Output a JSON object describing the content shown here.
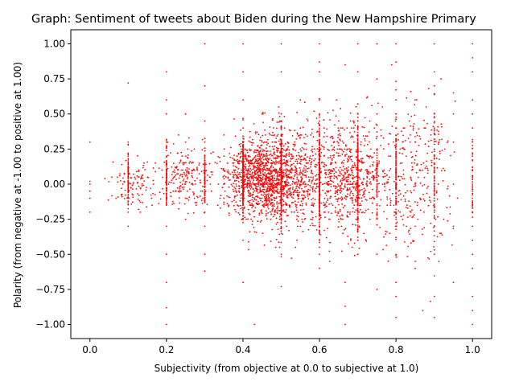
{
  "chart_data": {
    "type": "scatter",
    "title": "Graph: Sentiment of tweets about Biden during the New Hampshire Primary",
    "xlabel": "Subjectivity (from objective at 0.0 to subjective at 1.0)",
    "ylabel": "Polarity (from negative at -1.00 to positive at 1.00)",
    "xlim": [
      -0.05,
      1.05
    ],
    "ylim": [
      -1.1,
      1.1
    ],
    "xticks": [
      0.0,
      0.2,
      0.4,
      0.6,
      0.8,
      1.0
    ],
    "xtick_labels": [
      "0.0",
      "0.2",
      "0.4",
      "0.6",
      "0.8",
      "1.0"
    ],
    "yticks": [
      -1.0,
      -0.75,
      -0.5,
      -0.25,
      0.0,
      0.25,
      0.5,
      0.75,
      1.0
    ],
    "ytick_labels": [
      "−1.00",
      "−0.75",
      "−0.50",
      "−0.25",
      "0.00",
      "0.25",
      "0.50",
      "0.75",
      "1.00"
    ],
    "grid": false,
    "marker_color": "#ff0000",
    "series": [
      {
        "points": [
          [
            0.0,
            0.0
          ],
          [
            0.0,
            0.3
          ],
          [
            0.0,
            -0.05
          ],
          [
            0.0,
            -0.1
          ],
          [
            0.0,
            -0.2
          ],
          [
            0.0,
            0.02
          ],
          [
            0.1,
            0.0
          ],
          [
            0.1,
            0.1
          ],
          [
            0.1,
            -0.1
          ],
          [
            0.1,
            0.2
          ],
          [
            0.1,
            0.3
          ],
          [
            0.1,
            -0.2
          ],
          [
            0.1,
            -0.3
          ],
          [
            0.1,
            0.72
          ],
          [
            0.1,
            0.05
          ],
          [
            0.1,
            -0.05
          ],
          [
            0.2,
            0.0
          ],
          [
            0.2,
            0.1
          ],
          [
            0.2,
            -0.1
          ],
          [
            0.2,
            0.2
          ],
          [
            0.2,
            0.3
          ],
          [
            0.2,
            -0.3
          ],
          [
            0.2,
            0.5
          ],
          [
            0.2,
            0.8
          ],
          [
            0.2,
            -0.7
          ],
          [
            0.2,
            -0.88
          ],
          [
            0.2,
            -1.0
          ],
          [
            0.2,
            0.6
          ],
          [
            0.2,
            -0.5
          ],
          [
            0.25,
            0.0
          ],
          [
            0.25,
            0.1
          ],
          [
            0.25,
            0.2
          ],
          [
            0.25,
            -0.1
          ],
          [
            0.25,
            0.3
          ],
          [
            0.25,
            0.5
          ],
          [
            0.25,
            -0.25
          ],
          [
            0.3,
            1.0
          ],
          [
            0.3,
            0.0
          ],
          [
            0.3,
            0.15
          ],
          [
            0.3,
            -0.5
          ],
          [
            0.3,
            0.7
          ],
          [
            0.3,
            -0.3
          ],
          [
            0.3,
            0.3
          ],
          [
            0.3,
            0.45
          ],
          [
            0.3,
            -0.62
          ],
          [
            0.35,
            0.1
          ],
          [
            0.35,
            0.2
          ],
          [
            0.35,
            -0.1
          ],
          [
            0.35,
            0.0
          ],
          [
            0.35,
            0.35
          ],
          [
            0.4,
            0.0
          ],
          [
            0.4,
            0.1
          ],
          [
            0.4,
            0.2
          ],
          [
            0.4,
            -0.1
          ],
          [
            0.4,
            0.4
          ],
          [
            0.4,
            0.6
          ],
          [
            0.4,
            1.0
          ],
          [
            0.4,
            -0.4
          ],
          [
            0.4,
            -0.7
          ],
          [
            0.4,
            0.8
          ],
          [
            0.4,
            -0.2
          ],
          [
            0.4,
            0.3
          ],
          [
            0.45,
            0.15
          ],
          [
            0.45,
            0.25
          ],
          [
            0.45,
            -0.05
          ],
          [
            0.43,
            -1.0
          ],
          [
            0.45,
            0.5
          ],
          [
            0.5,
            0.0
          ],
          [
            0.5,
            0.1
          ],
          [
            0.5,
            0.2
          ],
          [
            0.5,
            0.3
          ],
          [
            0.5,
            -0.1
          ],
          [
            0.5,
            -0.2
          ],
          [
            0.5,
            0.5
          ],
          [
            0.5,
            1.0
          ],
          [
            0.5,
            -0.5
          ],
          [
            0.5,
            0.8
          ],
          [
            0.5,
            -0.73
          ],
          [
            0.5,
            -0.35
          ],
          [
            0.5,
            0.4
          ],
          [
            0.55,
            0.25
          ],
          [
            0.55,
            0.1
          ],
          [
            0.55,
            -0.15
          ],
          [
            0.55,
            0.4
          ],
          [
            0.55,
            -0.3
          ],
          [
            0.55,
            0.6
          ],
          [
            0.6,
            0.0
          ],
          [
            0.6,
            0.1
          ],
          [
            0.6,
            0.2
          ],
          [
            0.6,
            -0.1
          ],
          [
            0.6,
            -0.2
          ],
          [
            0.6,
            0.3
          ],
          [
            0.6,
            0.5
          ],
          [
            0.6,
            1.0
          ],
          [
            0.6,
            -0.4
          ],
          [
            0.6,
            -0.6
          ],
          [
            0.6,
            0.8
          ],
          [
            0.6,
            0.87
          ],
          [
            0.6,
            -0.5
          ],
          [
            0.65,
            0.1
          ],
          [
            0.65,
            -0.25
          ],
          [
            0.65,
            0.35
          ],
          [
            0.65,
            -0.1
          ],
          [
            0.667,
            -0.87
          ],
          [
            0.667,
            -0.7
          ],
          [
            0.667,
            0.0
          ],
          [
            0.667,
            0.2
          ],
          [
            0.667,
            -1.0
          ],
          [
            0.667,
            0.85
          ],
          [
            0.7,
            0.0
          ],
          [
            0.7,
            0.1
          ],
          [
            0.7,
            0.2
          ],
          [
            0.7,
            -0.2
          ],
          [
            0.7,
            0.5
          ],
          [
            0.7,
            1.0
          ],
          [
            0.7,
            -0.5
          ],
          [
            0.7,
            0.8
          ],
          [
            0.7,
            -0.4
          ],
          [
            0.7,
            0.35
          ],
          [
            0.75,
            0.0
          ],
          [
            0.75,
            0.1
          ],
          [
            0.75,
            0.25
          ],
          [
            0.75,
            -0.25
          ],
          [
            0.75,
            0.5
          ],
          [
            0.75,
            1.0
          ],
          [
            0.75,
            -0.5
          ],
          [
            0.75,
            0.75
          ],
          [
            0.75,
            -0.75
          ],
          [
            0.8,
            0.0
          ],
          [
            0.8,
            0.2
          ],
          [
            0.8,
            -0.2
          ],
          [
            0.8,
            0.5
          ],
          [
            0.8,
            -0.5
          ],
          [
            0.8,
            1.0
          ],
          [
            0.8,
            -0.7
          ],
          [
            0.8,
            -0.8
          ],
          [
            0.8,
            0.6
          ],
          [
            0.8,
            -0.95
          ],
          [
            0.8,
            0.4
          ],
          [
            0.85,
            0.0
          ],
          [
            0.85,
            0.3
          ],
          [
            0.85,
            -0.3
          ],
          [
            0.85,
            0.6
          ],
          [
            0.85,
            -0.6
          ],
          [
            0.87,
            -0.9
          ],
          [
            0.9,
            0.0
          ],
          [
            0.9,
            0.2
          ],
          [
            0.9,
            -0.2
          ],
          [
            0.9,
            0.5
          ],
          [
            0.9,
            -0.5
          ],
          [
            0.9,
            1.0
          ],
          [
            0.9,
            0.8
          ],
          [
            0.9,
            -0.8
          ],
          [
            0.9,
            -0.95
          ],
          [
            0.9,
            0.7
          ],
          [
            0.95,
            0.0
          ],
          [
            0.95,
            0.5
          ],
          [
            0.95,
            -0.3
          ],
          [
            0.95,
            0.3
          ],
          [
            0.95,
            -0.7
          ],
          [
            0.95,
            0.65
          ],
          [
            1.0,
            0.0
          ],
          [
            1.0,
            0.1
          ],
          [
            1.0,
            0.2
          ],
          [
            1.0,
            0.3
          ],
          [
            1.0,
            0.5
          ],
          [
            1.0,
            0.8
          ],
          [
            1.0,
            1.0
          ],
          [
            1.0,
            -0.1
          ],
          [
            1.0,
            -0.2
          ],
          [
            1.0,
            -0.5
          ],
          [
            1.0,
            -0.6
          ],
          [
            1.0,
            -0.8
          ],
          [
            1.0,
            -0.9
          ],
          [
            1.0,
            -1.0
          ],
          [
            1.0,
            0.9
          ],
          [
            1.0,
            -0.4
          ],
          [
            1.0,
            0.6
          ],
          [
            1.0,
            -0.3
          ],
          [
            1.0,
            0.4
          ]
        ],
        "cloud": [
          {
            "xmin": 0.03,
            "xmax": 0.2,
            "ymin": -0.25,
            "ymax": 0.25,
            "n": 140
          },
          {
            "xmin": 0.15,
            "xmax": 0.35,
            "ymin": -0.3,
            "ymax": 0.4,
            "n": 260
          },
          {
            "xmin": 0.3,
            "xmax": 0.6,
            "ymin": -0.35,
            "ymax": 0.45,
            "n": 1300
          },
          {
            "xmin": 0.35,
            "xmax": 0.7,
            "ymin": -0.6,
            "ymax": 0.7,
            "n": 700
          },
          {
            "xmin": 0.55,
            "xmax": 0.8,
            "ymin": -0.6,
            "ymax": 0.7,
            "n": 650
          },
          {
            "xmin": 0.7,
            "xmax": 0.95,
            "ymin": -0.8,
            "ymax": 0.9,
            "n": 260
          },
          {
            "xmin": 0.25,
            "xmax": 0.9,
            "ymin": -0.2,
            "ymax": 0.3,
            "n": 500
          },
          {
            "xmin": 0.8,
            "xmax": 1.0,
            "ymin": -0.9,
            "ymax": 1.0,
            "n": 120
          }
        ]
      }
    ]
  }
}
